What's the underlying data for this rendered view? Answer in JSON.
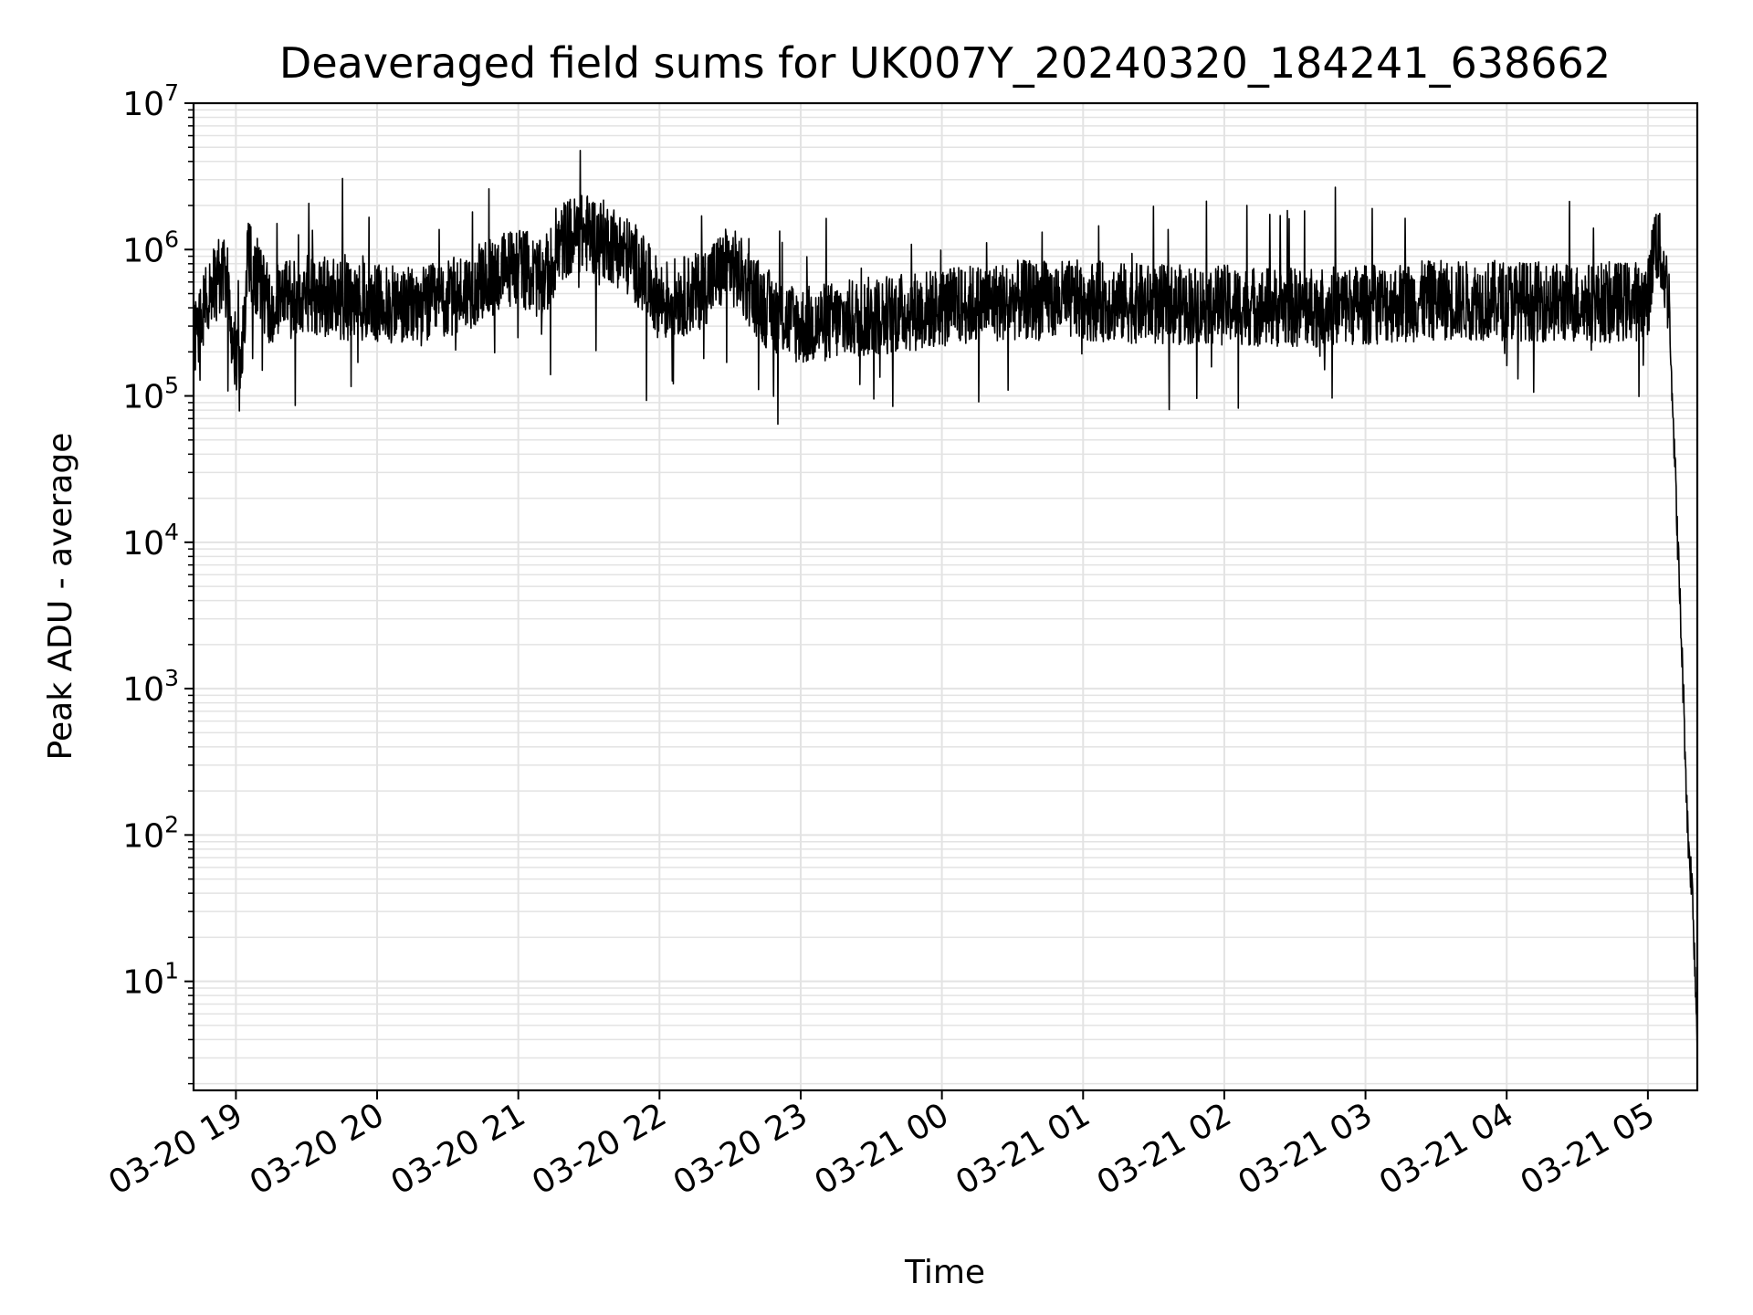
{
  "chart_data": {
    "type": "line",
    "title": "Deaveraged field sums for UK007Y_20240320_184241_638662",
    "xlabel": "Time",
    "ylabel": "Peak ADU - average",
    "yscale": "log",
    "ylim": [
      1.8,
      10000000
    ],
    "xlim": [
      "2024-03-20 18:42",
      "2024-03-21 05:21"
    ],
    "x_ticks": [
      "03-20 19",
      "03-20 20",
      "03-20 21",
      "03-20 22",
      "03-20 23",
      "03-21 00",
      "03-21 01",
      "03-21 02",
      "03-21 03",
      "03-21 04",
      "03-21 05"
    ],
    "y_ticks": [
      {
        "base": "10",
        "exp": "1"
      },
      {
        "base": "10",
        "exp": "2"
      },
      {
        "base": "10",
        "exp": "3"
      },
      {
        "base": "10",
        "exp": "4"
      },
      {
        "base": "10",
        "exp": "5"
      },
      {
        "base": "10",
        "exp": "6"
      },
      {
        "base": "10",
        "exp": "7"
      }
    ],
    "grid": true,
    "line_color": "#000000",
    "grid_color": "#e3e3e3",
    "series": [
      {
        "x": [
          "2024-03-20 18:42",
          "2024-03-20 18:50",
          "2024-03-20 18:56",
          "2024-03-20 18:58",
          "2024-03-20 19:02",
          "2024-03-20 19:05",
          "2024-03-20 19:15",
          "2024-03-20 19:30",
          "2024-03-20 19:45",
          "2024-03-20 20:00",
          "2024-03-20 20:15",
          "2024-03-20 20:30",
          "2024-03-20 20:45",
          "2024-03-20 21:00",
          "2024-03-20 21:10",
          "2024-03-20 21:20",
          "2024-03-20 21:30",
          "2024-03-20 21:40",
          "2024-03-20 21:50",
          "2024-03-20 22:00",
          "2024-03-20 22:15",
          "2024-03-20 22:30",
          "2024-03-20 22:45",
          "2024-03-20 23:00",
          "2024-03-20 23:30",
          "2024-03-21 00:00",
          "2024-03-21 00:30",
          "2024-03-21 01:00",
          "2024-03-21 01:30",
          "2024-03-21 02:00",
          "2024-03-21 02:30",
          "2024-03-21 03:00",
          "2024-03-21 03:30",
          "2024-03-21 04:00",
          "2024-03-21 04:30",
          "2024-03-21 05:00",
          "2024-03-21 05:03",
          "2024-03-21 05:06",
          "2024-03-21 05:09",
          "2024-03-21 05:12",
          "2024-03-21 05:15",
          "2024-03-21 05:17",
          "2024-03-21 05:19",
          "2024-03-21 05:21"
        ],
        "y": [
          220000,
          600000,
          650000,
          300000,
          120000,
          900000,
          400000,
          500000,
          450000,
          420000,
          400000,
          450000,
          600000,
          800000,
          600000,
          1200000,
          1300000,
          1100000,
          800000,
          450000,
          500000,
          800000,
          400000,
          300000,
          350000,
          400000,
          450000,
          450000,
          420000,
          420000,
          400000,
          420000,
          450000,
          450000,
          430000,
          450000,
          1200000,
          850000,
          450000,
          20000,
          1000,
          100,
          40,
          4
        ]
      }
    ]
  }
}
